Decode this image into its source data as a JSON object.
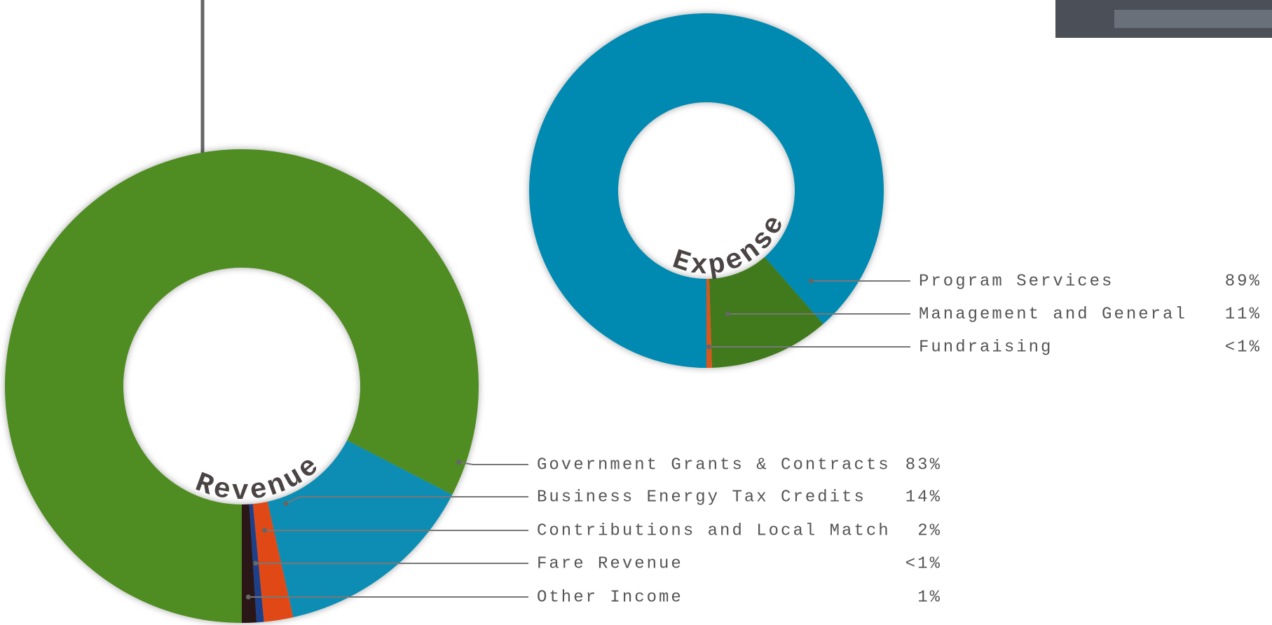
{
  "chart_data": [
    {
      "type": "donut",
      "title": "Revenue",
      "categories": [
        "Government Grants & Contracts",
        "Business Energy Tax Credits",
        "Contributions and Local Match",
        "Fare Revenue",
        "Other Income"
      ],
      "values": [
        83,
        14,
        2,
        0.5,
        1
      ],
      "value_labels": [
        "83%",
        "14%",
        "2%",
        "<1%",
        "1%"
      ],
      "colors": [
        "#4f8c22",
        "#0a8db3",
        "#e04a14",
        "#1f3f8a",
        "#2a1414"
      ]
    },
    {
      "type": "donut",
      "title": "Expense",
      "categories": [
        "Program Services",
        "Management and General",
        "Fundraising"
      ],
      "values": [
        89,
        11,
        0.5
      ],
      "value_labels": [
        "89%",
        "11%",
        "<1%"
      ],
      "colors": [
        "#0589b1",
        "#3f7a1a",
        "#d9561c"
      ]
    }
  ]
}
